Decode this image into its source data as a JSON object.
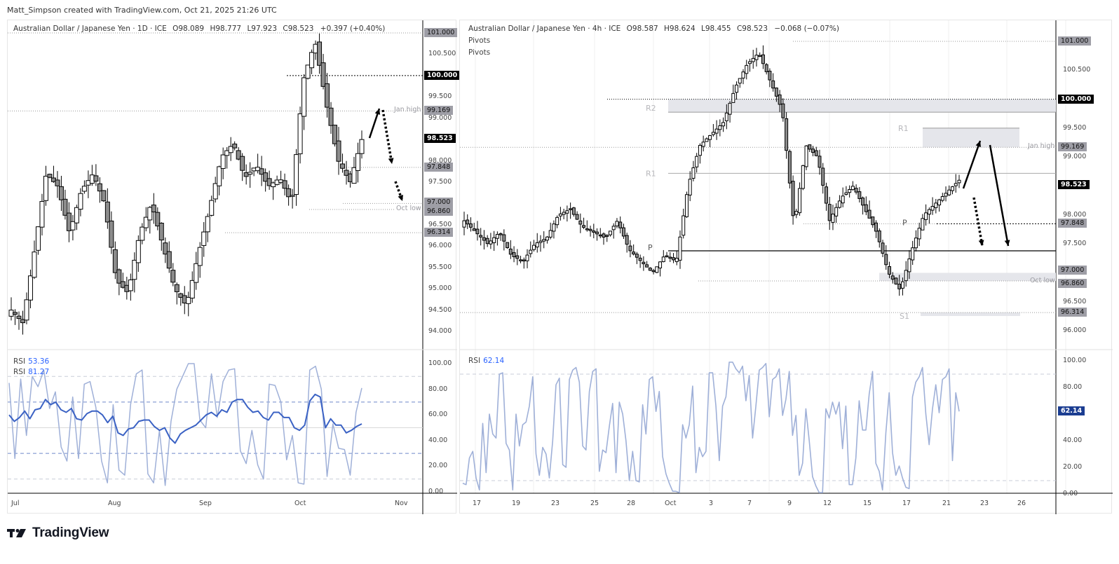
{
  "credit": "Matt_Simpson created with TradingView.com, Oct 21, 2025 21:26 UTC",
  "brand": {
    "name": "TradingView",
    "logo_icon": "tradingview-logo-icon"
  },
  "colors": {
    "up_body": "#ffffff",
    "down_body": "#8c8c8c",
    "wick": "#000000",
    "rsi_fast": "#9fb0d8",
    "rsi_slow": "#3b62c4",
    "rsi_tag": "#1b3d91",
    "zone_fill": "#e5e6eb",
    "label_tag": "#9e9ea6"
  },
  "left_chart": {
    "symbol": "Australian Dollar / Japanese Yen · 1D · ICE",
    "ohlc": {
      "open": "O98.089",
      "high": "H98.777",
      "low": "L97.923",
      "close": "C98.523",
      "change": "+0.397 (+0.40%)"
    },
    "price_axis": [
      "100.500",
      "99.500",
      "99.000",
      "98.000",
      "97.500",
      "96.500",
      "96.000",
      "95.500",
      "95.000",
      "94.500",
      "94.000"
    ],
    "price_tags": {
      "t101": "101.000",
      "t100": "100.000",
      "jan_high": "99.169",
      "last": "98.523",
      "t97848": "97.848",
      "t97": "97.000",
      "oct_low": "96.860",
      "t96314": "96.314"
    },
    "notes": {
      "jan_high": "Jan high",
      "oct_low": "Oct low"
    },
    "time_axis": [
      "Jul",
      "Aug",
      "Sep",
      "Oct",
      "Nov"
    ],
    "rsi": {
      "label1": "RSI",
      "value1": "53.36",
      "label2": "RSI",
      "value2": "81.27",
      "axis": [
        "100.00",
        "80.00",
        "60.00",
        "40.00",
        "20.00",
        "0.00"
      ]
    }
  },
  "right_chart": {
    "symbol": "Australian Dollar / Japanese Yen · 4h · ICE",
    "ohlc": {
      "open": "O98.587",
      "high": "H98.624",
      "low": "L98.455",
      "close": "C98.523",
      "change": "−0.068 (−0.07%)"
    },
    "indicators": [
      "Pivots",
      "Pivots"
    ],
    "pivot_labels": {
      "r2": "R2",
      "r1_old": "R1",
      "p_old": "P",
      "r1_new": "R1",
      "p_new": "P",
      "s1": "S1"
    },
    "price_axis": [
      "100.500",
      "99.500",
      "99.000",
      "98.000",
      "97.500",
      "96.500",
      "96.000"
    ],
    "price_tags": {
      "t101": "101.000",
      "t100": "100.000",
      "jan_high": "99.169",
      "last": "98.523",
      "t97848": "97.848",
      "t97": "97.000",
      "oct_low": "96.860",
      "t96314": "96.314"
    },
    "notes": {
      "jan_high": "Jan high",
      "oct_low": "Oct low"
    },
    "time_axis": [
      "17",
      "19",
      "23",
      "25",
      "28",
      "Oct",
      "3",
      "7",
      "9",
      "12",
      "15",
      "17",
      "21",
      "23",
      "26"
    ],
    "rsi": {
      "label": "RSI",
      "value": "62.14",
      "axis": [
        "100.00",
        "80.00",
        "40.00",
        "20.00",
        "0.00"
      ],
      "tag": "62.14"
    }
  },
  "chart_data": [
    {
      "type": "candlestick",
      "title": "Australian Dollar / Japanese Yen · 1D · ICE",
      "x": [
        "Jul",
        "Aug",
        "Sep",
        "Oct",
        "Nov"
      ],
      "ylim": [
        93.8,
        101.2
      ],
      "last": {
        "open": 98.089,
        "high": 98.777,
        "low": 97.923,
        "close": 98.523,
        "change": 0.397,
        "change_pct": 0.4
      },
      "levels": [
        {
          "price": 101.0,
          "label": "101.000"
        },
        {
          "price": 100.0,
          "label": "100.000"
        },
        {
          "price": 99.169,
          "label": "Jan high"
        },
        {
          "price": 97.848,
          "label": "97.848"
        },
        {
          "price": 97.0,
          "label": "97.000"
        },
        {
          "price": 96.86,
          "label": "Oct low"
        },
        {
          "price": 96.314,
          "label": "96.314"
        }
      ],
      "approx_closes": [
        94.4,
        95.8,
        97.5,
        97.0,
        96.4,
        95.2,
        96.7,
        97.6,
        97.5,
        95.0,
        96.2,
        97.8,
        97.0,
        95.2,
        94.9,
        96.5,
        98.2,
        97.9,
        97.6,
        97.4,
        100.8,
        97.9,
        98.5
      ],
      "rsi": {
        "series": [
          {
            "name": "RSI (fast)",
            "last": 81.27,
            "values": [
              85,
              26,
              88,
              44,
              90,
              82,
              95,
              65,
              78,
              35,
              24,
              74,
              26,
              84,
              86,
              66,
              24,
              7,
              68,
              17,
              13,
              68,
              92,
              95,
              14,
              7,
              48,
              5,
              55,
              80,
              90,
              100,
              100,
              56,
              50,
              92,
              58,
              86,
              95,
              96,
              32,
              22,
              48,
              21,
              10,
              84,
              83,
              70,
              25,
              44,
              7,
              6,
              95,
              98,
              80,
              12,
              53,
              34,
              33,
              13,
              62,
              81
            ]
          },
          {
            "name": "RSI (slow)",
            "last": 53.36,
            "values": [
              60,
              55,
              58,
              63,
              57,
              64,
              65,
              72,
              68,
              70,
              64,
              62,
              65,
              57,
              56,
              61,
              63,
              63,
              60,
              54,
              59,
              46,
              44,
              49,
              50,
              55,
              56,
              56,
              51,
              48,
              50,
              42,
              38,
              45,
              48,
              50,
              52,
              56,
              60,
              62,
              59,
              64,
              62,
              70,
              72,
              72,
              66,
              62,
              63,
              58,
              56,
              62,
              62,
              58,
              58,
              50,
              48,
              52,
              71,
              76,
              74,
              50,
              57,
              52,
              52,
              46,
              48,
              51,
              53
            ]
          }
        ],
        "ylim": [
          0,
          100
        ],
        "bands": [
          10,
          30,
          50,
          70,
          90
        ]
      }
    },
    {
      "type": "candlestick",
      "title": "Australian Dollar / Japanese Yen · 4h · ICE",
      "x": [
        "17",
        "19",
        "23",
        "25",
        "28",
        "Oct",
        "3",
        "7",
        "9",
        "12",
        "15",
        "17",
        "21",
        "23",
        "26"
      ],
      "ylim": [
        95.8,
        101.1
      ],
      "last": {
        "open": 98.587,
        "high": 98.624,
        "low": 98.455,
        "close": 98.523,
        "change": -0.068,
        "change_pct": -0.07
      },
      "pivots": [
        {
          "label": "R2",
          "price": 99.8
        },
        {
          "label": "R1",
          "price": 98.72
        },
        {
          "label": "P",
          "price": 97.38
        },
        {
          "label": "R1",
          "price": 99.45
        },
        {
          "label": "P",
          "price": 97.87
        },
        {
          "label": "S1",
          "price": 96.3
        }
      ],
      "levels": [
        {
          "price": 101.0,
          "label": "101.000"
        },
        {
          "price": 100.0,
          "label": "100.000"
        },
        {
          "price": 99.169,
          "label": "Jan high"
        },
        {
          "price": 97.848,
          "label": "97.848"
        },
        {
          "price": 97.0,
          "label": "97.000"
        },
        {
          "price": 96.86,
          "label": "Oct low"
        },
        {
          "price": 96.314,
          "label": "96.314"
        }
      ],
      "rsi": {
        "series": [
          {
            "name": "RSI",
            "last": 62.14,
            "values": [
              8,
              7,
              27,
              32,
              12,
              3,
              53,
              16,
              60,
              45,
              42,
              90,
              91,
              38,
              33,
              3,
              60,
              36,
              52,
              54,
              66,
              88,
              30,
              14,
              35,
              30,
              12,
              40,
              82,
              87,
              22,
              20,
              86,
              93,
              95,
              84,
              36,
              33,
              77,
              92,
              94,
              17,
              33,
              31,
              51,
              68,
              16,
              69,
              60,
              40,
              10,
              32,
              10,
              9,
              67,
              45,
              86,
              88,
              62,
              77,
              28,
              15,
              8,
              2,
              2,
              1,
              52,
              42,
              52,
              81,
              16,
              35,
              28,
              32,
              91,
              91,
              66,
              25,
              66,
              73,
              99,
              99,
              94,
              91,
              96,
              70,
              89,
              42,
              66,
              93,
              95,
              98,
              58,
              86,
              88,
              94,
              59,
              71,
              92,
              44,
              59,
              14,
              23,
              64,
              40,
              13,
              6,
              1,
              1,
              64,
              57,
              69,
              60,
              69,
              34,
              66,
              7,
              7,
              27,
              70,
              48,
              48,
              75,
              92,
              23,
              17,
              3,
              46,
              76,
              31,
              14,
              21,
              12,
              5,
              4,
              73,
              84,
              88,
              95,
              60,
              37,
              64,
              82,
              61,
              86,
              88,
              94,
              25,
              76,
              62
            ]
          }
        ],
        "ylim": [
          0,
          100
        ],
        "bands": [
          10,
          90
        ]
      }
    }
  ]
}
